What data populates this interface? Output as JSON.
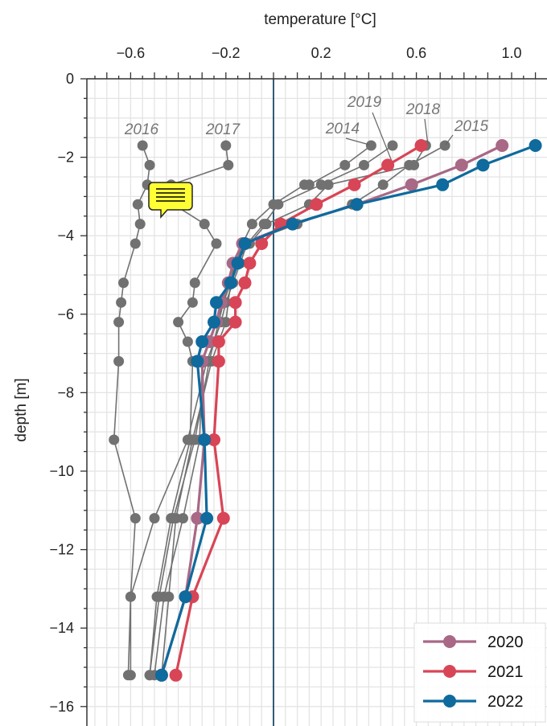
{
  "chart_data": {
    "type": "line",
    "xlabel": "temperature [°C]",
    "ylabel": "depth [m]",
    "xlim": [
      -0.8,
      1.1
    ],
    "ylim": [
      -16.2,
      0
    ],
    "xticks": [
      -0.6,
      -0.2,
      0.2,
      0.6,
      1.0
    ],
    "xtick_labels": [
      "−0.6",
      "−0.2",
      "0.2",
      "0.6",
      "1.0"
    ],
    "yticks": [
      0,
      -2,
      -4,
      -6,
      -8,
      -10,
      -12,
      -14,
      -16
    ],
    "ytick_labels": [
      "0",
      "−2",
      "−4",
      "−6",
      "−8",
      "−10",
      "−12",
      "−14",
      "−16"
    ],
    "x_axis_position": "top",
    "grid": true,
    "reference_line_x": 0,
    "legend": {
      "position": "bottom-right",
      "entries": [
        "2020",
        "2021",
        "2022"
      ]
    },
    "colors": {
      "background_series": "#717171",
      "2020": "#a86886",
      "2021": "#d84556",
      "2022": "#0f6a9d",
      "zero_line": "#1a4a66",
      "grid": "#e4e4e4"
    },
    "series": [
      {
        "name": "2014",
        "highlight": false,
        "points": [
          [
            0.41,
            -1.7
          ],
          [
            0.3,
            -2.2
          ],
          [
            0.15,
            -2.7
          ],
          [
            0.13,
            -2.7
          ],
          [
            0.0,
            -3.2
          ],
          [
            -0.09,
            -3.7
          ],
          [
            -0.13,
            -4.2
          ],
          [
            -0.18,
            -5.2
          ],
          [
            -0.2,
            -6.2
          ],
          [
            -0.26,
            -7.2
          ],
          [
            -0.34,
            -9.2
          ],
          [
            -0.41,
            -11.2
          ],
          [
            -0.44,
            -13.2
          ],
          [
            -0.47,
            -15.2
          ]
        ]
      },
      {
        "name": "2015",
        "highlight": false,
        "points": [
          [
            0.72,
            -1.7
          ],
          [
            0.57,
            -2.2
          ],
          [
            0.46,
            -2.7
          ],
          [
            0.33,
            -3.2
          ],
          [
            0.1,
            -3.7
          ],
          [
            -0.12,
            -4.2
          ],
          [
            -0.16,
            -4.7
          ],
          [
            -0.19,
            -5.2
          ],
          [
            -0.21,
            -5.7
          ],
          [
            -0.24,
            -6.2
          ],
          [
            -0.27,
            -6.7
          ],
          [
            -0.3,
            -7.2
          ],
          [
            -0.31,
            -9.2
          ],
          [
            -0.38,
            -11.2
          ],
          [
            -0.46,
            -13.2
          ],
          [
            -0.5,
            -15.2
          ]
        ]
      },
      {
        "name": "2016",
        "highlight": false,
        "points": [
          [
            -0.55,
            -1.7
          ],
          [
            -0.52,
            -2.2
          ],
          [
            -0.53,
            -2.7
          ],
          [
            -0.57,
            -3.2
          ],
          [
            -0.56,
            -3.7
          ],
          [
            -0.58,
            -4.2
          ],
          [
            -0.63,
            -5.2
          ],
          [
            -0.64,
            -5.7
          ],
          [
            -0.65,
            -6.2
          ],
          [
            -0.65,
            -7.2
          ],
          [
            -0.67,
            -9.2
          ],
          [
            -0.58,
            -11.2
          ],
          [
            -0.6,
            -13.2
          ],
          [
            -0.61,
            -15.2
          ]
        ]
      },
      {
        "name": "2017",
        "highlight": false,
        "points": [
          [
            -0.2,
            -1.7
          ],
          [
            -0.19,
            -2.2
          ],
          [
            -0.43,
            -2.7
          ],
          [
            -0.42,
            -3.2
          ],
          [
            -0.29,
            -3.7
          ],
          [
            -0.24,
            -4.2
          ],
          [
            -0.33,
            -5.2
          ],
          [
            -0.34,
            -5.7
          ],
          [
            -0.4,
            -6.2
          ],
          [
            -0.36,
            -6.7
          ],
          [
            -0.34,
            -7.2
          ],
          [
            -0.35,
            -9.2
          ],
          [
            -0.43,
            -11.2
          ],
          [
            -0.49,
            -13.2
          ],
          [
            -0.52,
            -15.2
          ]
        ]
      },
      {
        "name": "2018",
        "highlight": false,
        "points": [
          [
            0.64,
            -1.7
          ],
          [
            0.59,
            -2.2
          ],
          [
            0.23,
            -2.7
          ],
          [
            0.15,
            -3.2
          ],
          [
            -0.03,
            -3.7
          ],
          [
            -0.1,
            -4.2
          ],
          [
            -0.16,
            -4.7
          ],
          [
            -0.18,
            -5.2
          ],
          [
            -0.21,
            -5.7
          ],
          [
            -0.23,
            -6.2
          ],
          [
            -0.25,
            -6.7
          ],
          [
            -0.27,
            -7.2
          ],
          [
            -0.33,
            -9.2
          ],
          [
            -0.42,
            -11.2
          ],
          [
            -0.48,
            -13.2
          ],
          [
            -0.52,
            -15.2
          ]
        ]
      },
      {
        "name": "2019",
        "highlight": false,
        "points": [
          [
            0.5,
            -1.7
          ],
          [
            0.38,
            -2.2
          ],
          [
            0.2,
            -2.7
          ],
          [
            0.02,
            -3.2
          ],
          [
            -0.04,
            -3.7
          ],
          [
            -0.11,
            -4.2
          ],
          [
            -0.14,
            -4.7
          ],
          [
            -0.17,
            -5.2
          ],
          [
            -0.2,
            -5.7
          ],
          [
            -0.22,
            -6.2
          ],
          [
            -0.25,
            -6.7
          ],
          [
            -0.28,
            -7.2
          ],
          [
            -0.36,
            -9.2
          ],
          [
            -0.5,
            -11.2
          ],
          [
            -0.6,
            -13.2
          ],
          [
            -0.6,
            -15.2
          ]
        ]
      },
      {
        "name": "2020",
        "highlight": true,
        "points": [
          [
            0.96,
            -1.7
          ],
          [
            0.79,
            -2.2
          ],
          [
            0.58,
            -2.7
          ],
          [
            0.35,
            -3.2
          ],
          [
            0.08,
            -3.7
          ],
          [
            -0.13,
            -4.2
          ],
          [
            -0.17,
            -4.7
          ],
          [
            -0.19,
            -5.2
          ],
          [
            -0.22,
            -5.7
          ],
          [
            -0.24,
            -6.2
          ],
          [
            -0.27,
            -6.7
          ],
          [
            -0.3,
            -7.2
          ],
          [
            -0.29,
            -9.2
          ],
          [
            -0.32,
            -11.2
          ],
          [
            -0.37,
            -13.2
          ],
          [
            -0.47,
            -15.2
          ]
        ]
      },
      {
        "name": "2021",
        "highlight": true,
        "points": [
          [
            0.62,
            -1.7
          ],
          [
            0.48,
            -2.2
          ],
          [
            0.34,
            -2.7
          ],
          [
            0.18,
            -3.2
          ],
          [
            0.03,
            -3.7
          ],
          [
            -0.05,
            -4.2
          ],
          [
            -0.1,
            -4.7
          ],
          [
            -0.12,
            -5.2
          ],
          [
            -0.16,
            -5.7
          ],
          [
            -0.16,
            -6.2
          ],
          [
            -0.23,
            -6.7
          ],
          [
            -0.23,
            -7.2
          ],
          [
            -0.25,
            -9.2
          ],
          [
            -0.21,
            -11.2
          ],
          [
            -0.34,
            -13.2
          ],
          [
            -0.41,
            -15.2
          ]
        ]
      },
      {
        "name": "2022",
        "highlight": true,
        "points": [
          [
            1.1,
            -1.7
          ],
          [
            0.88,
            -2.2
          ],
          [
            0.71,
            -2.7
          ],
          [
            0.35,
            -3.2
          ],
          [
            0.08,
            -3.7
          ],
          [
            -0.12,
            -4.2
          ],
          [
            -0.15,
            -4.7
          ],
          [
            -0.18,
            -5.2
          ],
          [
            -0.24,
            -5.7
          ],
          [
            -0.25,
            -6.2
          ],
          [
            -0.3,
            -6.7
          ],
          [
            -0.32,
            -7.2
          ],
          [
            -0.29,
            -9.2
          ],
          [
            -0.28,
            -11.2
          ],
          [
            -0.37,
            -13.2
          ],
          [
            -0.47,
            -15.2
          ]
        ]
      }
    ],
    "annotations": [
      {
        "text": "2016",
        "series": "2016"
      },
      {
        "text": "2017",
        "series": "2017"
      },
      {
        "text": "2014",
        "series": "2014"
      },
      {
        "text": "2019",
        "series": "2019"
      },
      {
        "text": "2018",
        "series": "2018"
      },
      {
        "text": "2015",
        "series": "2015"
      }
    ]
  },
  "overlay": {
    "icon": "note-speech-bubble-icon"
  }
}
